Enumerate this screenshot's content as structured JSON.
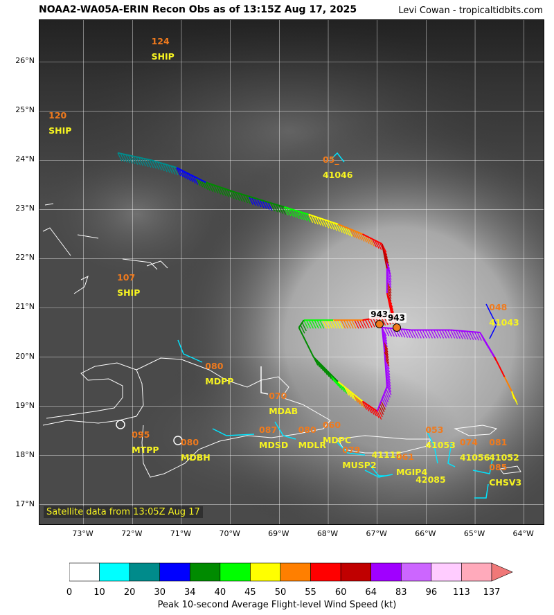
{
  "header": {
    "title": "NOAA2-WA05A-ERIN Recon Obs as of 13:15Z Aug 17, 2025",
    "credit": "Levi Cowan - tropicaltidbits.com"
  },
  "map": {
    "lon_range": [
      -73.9,
      -63.6
    ],
    "lat_range": [
      16.6,
      26.85
    ],
    "lat_ticks": [
      {
        "value": 17,
        "label": "17°N"
      },
      {
        "value": 18,
        "label": "18°N"
      },
      {
        "value": 19,
        "label": "19°N"
      },
      {
        "value": 20,
        "label": "20°N"
      },
      {
        "value": 21,
        "label": "21°N"
      },
      {
        "value": 22,
        "label": "22°N"
      },
      {
        "value": 23,
        "label": "23°N"
      },
      {
        "value": 24,
        "label": "24°N"
      },
      {
        "value": 25,
        "label": "25°N"
      },
      {
        "value": 26,
        "label": "26°N"
      }
    ],
    "lon_ticks": [
      {
        "value": -73,
        "label": "73°W"
      },
      {
        "value": -72,
        "label": "72°W"
      },
      {
        "value": -71,
        "label": "71°W"
      },
      {
        "value": -70,
        "label": "70°W"
      },
      {
        "value": -69,
        "label": "69°W"
      },
      {
        "value": -68,
        "label": "68°W"
      },
      {
        "value": -67,
        "label": "67°W"
      },
      {
        "value": -66,
        "label": "66°W"
      },
      {
        "value": -65,
        "label": "65°W"
      },
      {
        "value": -64,
        "label": "64°W"
      }
    ],
    "satellite_label": "Satellite data from 13:05Z Aug 17",
    "central_pressures": [
      {
        "label": "943",
        "lon": -66.95,
        "lat": 20.67
      },
      {
        "label": "943",
        "lon": -66.6,
        "lat": 20.6
      }
    ],
    "stations": [
      {
        "code": "SHIP",
        "value": "124",
        "lon": -71.6,
        "lat": 26.2
      },
      {
        "code": "SHIP",
        "value": "120",
        "lon": -73.7,
        "lat": 24.7
      },
      {
        "code": "41046",
        "value": "05_",
        "lon": -68.1,
        "lat": 23.8
      },
      {
        "code": "SHIP",
        "value": "107",
        "lon": -72.3,
        "lat": 21.4
      },
      {
        "code": "41043",
        "value": "048",
        "lon": -64.7,
        "lat": 20.8
      },
      {
        "code": "MDPP",
        "value": "080",
        "lon": -70.5,
        "lat": 19.6
      },
      {
        "code": "MDAB",
        "value": "070",
        "lon": -69.2,
        "lat": 19.0
      },
      {
        "code": "MTPP",
        "value": "095",
        "lon": -72.0,
        "lat": 18.2
      },
      {
        "code": "MDBH",
        "value": "080",
        "lon": -71.0,
        "lat": 18.05
      },
      {
        "code": "MDSD",
        "value": "087",
        "lon": -69.4,
        "lat": 18.3
      },
      {
        "code": "MDLR",
        "value": "080",
        "lon": -68.6,
        "lat": 18.3
      },
      {
        "code": "MDPC",
        "value": "060",
        "lon": -68.1,
        "lat": 18.4
      },
      {
        "code": "MUSP2",
        "value": "079",
        "lon": -67.7,
        "lat": 17.9
      },
      {
        "code": "41115",
        "value": "",
        "lon": -67.1,
        "lat": 18.1
      },
      {
        "code": "MGIP4",
        "value": "061",
        "lon": -66.6,
        "lat": 17.75
      },
      {
        "code": "41053",
        "value": "053",
        "lon": -66.0,
        "lat": 18.3
      },
      {
        "code": "42085",
        "value": "",
        "lon": -66.2,
        "lat": 17.6
      },
      {
        "code": "41056",
        "value": "074",
        "lon": -65.3,
        "lat": 18.05
      },
      {
        "code": "41052",
        "value": "081",
        "lon": -64.7,
        "lat": 18.05
      },
      {
        "code": "CHSV3",
        "value": "085",
        "lon": -64.7,
        "lat": 17.55
      }
    ]
  },
  "colorbar": {
    "label": "Peak 10-second Average Flight-level Wind Speed (kt)",
    "ticks": [
      "0",
      "10",
      "20",
      "30",
      "34",
      "40",
      "45",
      "50",
      "55",
      "60",
      "64",
      "83",
      "96",
      "113",
      "137"
    ],
    "colors": [
      "#ffffff",
      "#00ffff",
      "#008b8b",
      "#0000ff",
      "#008b00",
      "#00ff00",
      "#ffff00",
      "#ff7f00",
      "#ff0000",
      "#c00000",
      "#a000ff",
      "#cc66ff",
      "#ffccff",
      "#ffaabb",
      "#f07878"
    ]
  },
  "flight_track": [
    {
      "lon": -72.3,
      "lat": 24.15,
      "wind": 20
    },
    {
      "lon": -71.6,
      "lat": 24.0,
      "wind": 25
    },
    {
      "lon": -71.1,
      "lat": 23.85,
      "wind": 30
    },
    {
      "lon": -70.5,
      "lat": 23.55,
      "wind": 36
    },
    {
      "lon": -69.9,
      "lat": 23.35,
      "wind": 38
    },
    {
      "lon": -69.4,
      "lat": 23.2,
      "wind": 30
    },
    {
      "lon": -68.9,
      "lat": 23.05,
      "wind": 40
    },
    {
      "lon": -68.4,
      "lat": 22.9,
      "wind": 45
    },
    {
      "lon": -67.8,
      "lat": 22.7,
      "wind": 48
    },
    {
      "lon": -67.3,
      "lat": 22.5,
      "wind": 52
    },
    {
      "lon": -66.9,
      "lat": 22.3,
      "wind": 58
    },
    {
      "lon": -66.8,
      "lat": 21.8,
      "wind": 68
    },
    {
      "lon": -66.8,
      "lat": 21.3,
      "wind": 60
    },
    {
      "lon": -66.7,
      "lat": 20.85,
      "wind": 56
    },
    {
      "lon": -67.3,
      "lat": 20.75,
      "wind": 58
    },
    {
      "lon": -67.9,
      "lat": 20.75,
      "wind": 48
    },
    {
      "lon": -68.5,
      "lat": 20.75,
      "wind": 40
    },
    {
      "lon": -68.6,
      "lat": 20.6,
      "wind": 38
    },
    {
      "lon": -68.3,
      "lat": 20.0,
      "wind": 36
    },
    {
      "lon": -67.8,
      "lat": 19.5,
      "wind": 42
    },
    {
      "lon": -67.3,
      "lat": 19.1,
      "wind": 55
    },
    {
      "lon": -67.0,
      "lat": 18.9,
      "wind": 58
    },
    {
      "lon": -66.8,
      "lat": 19.4,
      "wind": 70
    },
    {
      "lon": -66.85,
      "lat": 20.1,
      "wind": 62
    },
    {
      "lon": -66.9,
      "lat": 20.6,
      "wind": 66
    },
    {
      "lon": -66.3,
      "lat": 20.55,
      "wind": 70
    },
    {
      "lon": -65.5,
      "lat": 20.55,
      "wind": 68
    },
    {
      "lon": -64.9,
      "lat": 20.5,
      "wind": 70
    },
    {
      "lon": -64.6,
      "lat": 20.0,
      "wind": 62
    },
    {
      "lon": -64.4,
      "lat": 19.6,
      "wind": 55
    },
    {
      "lon": -64.25,
      "lat": 19.3,
      "wind": 50
    },
    {
      "lon": -64.2,
      "lat": 19.15,
      "wind": 45
    }
  ]
}
